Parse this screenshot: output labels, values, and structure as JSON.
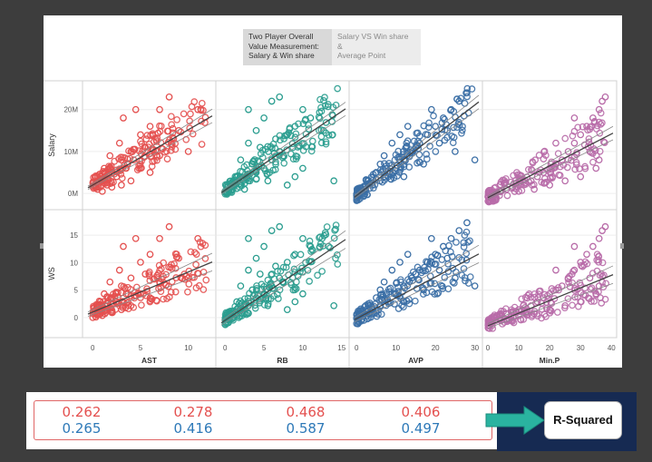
{
  "tabs": [
    {
      "label": "Two Player Overall\nValue Measurement:\nSalary & Win share"
    },
    {
      "label": "Salary  VS  Win share &\nAverage Point"
    }
  ],
  "colors": {
    "AST": "#e4504f",
    "RB": "#2a9d8f",
    "AVP": "#3a6ea5",
    "Min.P": "#b86ba8",
    "trend": "#444444"
  },
  "chart_data": {
    "type": "scatter",
    "rows": [
      {
        "label": "Salary",
        "ticks": [
          0,
          10,
          20
        ],
        "tick_labels": [
          "0M",
          "10M",
          "20M"
        ],
        "ylim": [
          -3,
          26
        ]
      },
      {
        "label": "WS",
        "ticks": [
          0,
          5,
          10,
          15
        ],
        "tick_labels": [
          "0",
          "5",
          "10",
          "15"
        ],
        "ylim": [
          -3,
          19
        ]
      }
    ],
    "columns": [
      {
        "label": "AST",
        "ticks": [
          0,
          5,
          10
        ],
        "xlim": [
          -0.5,
          12.5
        ],
        "color_key": "AST"
      },
      {
        "label": "RB",
        "ticks": [
          0,
          5,
          10,
          15
        ],
        "xlim": [
          -0.5,
          15.5
        ],
        "color_key": "RB"
      },
      {
        "label": "AVP",
        "ticks": [
          0,
          10,
          20,
          30
        ],
        "xlim": [
          -0.5,
          31
        ],
        "color_key": "AVP"
      },
      {
        "label": "Min.P",
        "ticks": [
          0,
          10,
          20,
          30,
          40
        ],
        "xlim": [
          0,
          40.5
        ],
        "color_key": "Min.P"
      }
    ],
    "trend_lines": [
      {
        "y": "Salary",
        "x": "AST",
        "slope": 1.32,
        "intercept": 2.0
      },
      {
        "y": "Salary",
        "x": "RB",
        "slope": 1.25,
        "intercept": 0.8
      },
      {
        "y": "Salary",
        "x": "AVP",
        "slope": 0.72,
        "intercept": -0.5
      },
      {
        "y": "Salary",
        "x": "Min.P",
        "slope": 0.38,
        "intercept": -1.0
      },
      {
        "y": "WS",
        "x": "AST",
        "slope": 0.73,
        "intercept": 1.0
      },
      {
        "y": "WS",
        "x": "RB",
        "slope": 0.95,
        "intercept": -0.5
      },
      {
        "y": "WS",
        "x": "AVP",
        "slope": 0.38,
        "intercept": -0.2
      },
      {
        "y": "WS",
        "x": "Min.P",
        "slope": 0.23,
        "intercept": -1.5
      }
    ],
    "sample_points": {
      "AST": [
        [
          0.5,
          1
        ],
        [
          1,
          3
        ],
        [
          1.5,
          2
        ],
        [
          2,
          5
        ],
        [
          2.5,
          4
        ],
        [
          3,
          8
        ],
        [
          3.5,
          6
        ],
        [
          4,
          10
        ],
        [
          5,
          14
        ],
        [
          6,
          16
        ],
        [
          7,
          20
        ],
        [
          8,
          23
        ],
        [
          10,
          10
        ],
        [
          1,
          0.5
        ],
        [
          2,
          1.5
        ],
        [
          3,
          2
        ],
        [
          4,
          3
        ],
        [
          5,
          6
        ],
        [
          6,
          5
        ],
        [
          7,
          9
        ],
        [
          9,
          15
        ],
        [
          11,
          20
        ],
        [
          0.3,
          2
        ],
        [
          1.2,
          6
        ],
        [
          2.8,
          12
        ],
        [
          3.2,
          18
        ],
        [
          4.5,
          20
        ],
        [
          5.5,
          11
        ],
        [
          1.8,
          9
        ],
        [
          0.8,
          4
        ]
      ],
      "RB": [
        [
          0.5,
          0.5
        ],
        [
          1,
          1
        ],
        [
          2,
          2
        ],
        [
          3,
          3
        ],
        [
          4,
          5
        ],
        [
          5,
          6
        ],
        [
          6,
          8
        ],
        [
          7,
          10
        ],
        [
          8,
          14
        ],
        [
          9,
          16
        ],
        [
          10,
          20
        ],
        [
          11,
          18
        ],
        [
          14,
          3
        ],
        [
          2,
          8
        ],
        [
          3,
          12
        ],
        [
          4,
          15
        ],
        [
          5,
          18
        ],
        [
          6,
          22
        ],
        [
          7,
          23
        ],
        [
          8,
          2
        ],
        [
          9,
          4
        ],
        [
          10,
          6
        ],
        [
          1.5,
          4
        ],
        [
          2.5,
          1
        ],
        [
          3.5,
          7
        ],
        [
          4.5,
          11
        ],
        [
          5.5,
          3
        ],
        [
          6.5,
          13
        ],
        [
          3,
          20
        ],
        [
          7.5,
          9
        ]
      ],
      "AVP": [
        [
          1,
          0.5
        ],
        [
          2,
          1
        ],
        [
          4,
          2
        ],
        [
          6,
          3
        ],
        [
          8,
          4
        ],
        [
          10,
          6
        ],
        [
          12,
          8
        ],
        [
          14,
          10
        ],
        [
          16,
          12
        ],
        [
          18,
          14
        ],
        [
          20,
          16
        ],
        [
          22,
          18
        ],
        [
          24,
          20
        ],
        [
          26,
          22
        ],
        [
          28,
          24
        ],
        [
          30,
          8
        ],
        [
          5,
          5
        ],
        [
          7,
          9
        ],
        [
          9,
          12
        ],
        [
          11,
          14
        ],
        [
          13,
          16
        ],
        [
          15,
          11
        ],
        [
          17,
          7
        ],
        [
          19,
          20
        ],
        [
          21,
          12
        ],
        [
          23,
          15
        ],
        [
          25,
          10
        ],
        [
          3,
          3
        ],
        [
          6,
          7
        ],
        [
          12,
          4
        ]
      ],
      "Min.P": [
        [
          2,
          0.2
        ],
        [
          4,
          0.5
        ],
        [
          6,
          1
        ],
        [
          8,
          1.5
        ],
        [
          10,
          2
        ],
        [
          12,
          2.5
        ],
        [
          14,
          3
        ],
        [
          16,
          4
        ],
        [
          18,
          5
        ],
        [
          20,
          6
        ],
        [
          22,
          7
        ],
        [
          24,
          8
        ],
        [
          26,
          10
        ],
        [
          28,
          12
        ],
        [
          30,
          14
        ],
        [
          32,
          16
        ],
        [
          34,
          18
        ],
        [
          36,
          20
        ],
        [
          37,
          22
        ],
        [
          38,
          23
        ],
        [
          15,
          1
        ],
        [
          20,
          2
        ],
        [
          25,
          3
        ],
        [
          30,
          4
        ],
        [
          35,
          6
        ],
        [
          10,
          0.5
        ],
        [
          22,
          12
        ],
        [
          28,
          18
        ],
        [
          33,
          10
        ],
        [
          36,
          8
        ]
      ]
    }
  },
  "r_squared": {
    "row1": [
      "0.262",
      "0.278",
      "0.468",
      "0.406"
    ],
    "row2": [
      "0.265",
      "0.416",
      "0.587",
      "0.497"
    ],
    "label": "R-Squared"
  }
}
